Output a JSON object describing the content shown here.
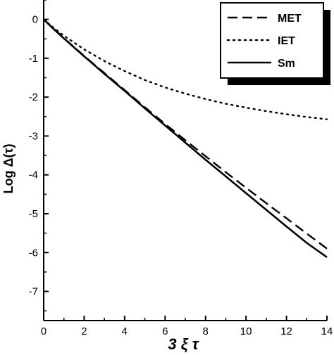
{
  "chart_data": {
    "type": "line",
    "title": "",
    "xlabel": "3 ξ τ",
    "ylabel": "Log Δ(τ)",
    "xlim": [
      0,
      14
    ],
    "ylim": [
      -7.75,
      0.5
    ],
    "xticks": [
      0,
      2,
      4,
      6,
      8,
      10,
      12,
      14
    ],
    "xtick_labels": [
      "0",
      "2",
      "4",
      "6",
      "8",
      "10",
      "12",
      "14"
    ],
    "yticks": [
      0,
      -1,
      -2,
      -3,
      -4,
      -5,
      -6,
      -7
    ],
    "ytick_labels": [
      "0",
      "-1",
      "-2",
      "-3",
      "-4",
      "-5",
      "-6",
      "-7"
    ],
    "grid": false,
    "legend_position": "top-right",
    "series": [
      {
        "name": "MET",
        "style": "dashed",
        "color": "#000000",
        "x": [
          0,
          0.5,
          1,
          2,
          3,
          4,
          5,
          6,
          7,
          8,
          9,
          10,
          11,
          12,
          13,
          14
        ],
        "y": [
          0,
          -0.24,
          -0.48,
          -0.94,
          -1.38,
          -1.82,
          -2.26,
          -2.69,
          -3.11,
          -3.52,
          -3.93,
          -4.33,
          -4.73,
          -5.12,
          -5.51,
          -5.9
        ]
      },
      {
        "name": "IET",
        "style": "dotted",
        "color": "#000000",
        "x": [
          0,
          0.5,
          1,
          2,
          3,
          4,
          5,
          6,
          7,
          8,
          9,
          10,
          11,
          12,
          13,
          14
        ],
        "y": [
          0,
          -0.22,
          -0.42,
          -0.77,
          -1.07,
          -1.33,
          -1.56,
          -1.75,
          -1.91,
          -2.05,
          -2.17,
          -2.27,
          -2.36,
          -2.44,
          -2.51,
          -2.57
        ]
      },
      {
        "name": "Sm",
        "style": "solid",
        "color": "#000000",
        "x": [
          0,
          0.5,
          1,
          2,
          3,
          4,
          5,
          6,
          7,
          8,
          9,
          10,
          11,
          12,
          13,
          14
        ],
        "y": [
          0,
          -0.25,
          -0.49,
          -0.95,
          -1.4,
          -1.84,
          -2.29,
          -2.73,
          -3.17,
          -3.61,
          -4.04,
          -4.47,
          -4.9,
          -5.33,
          -5.75,
          -6.12
        ]
      }
    ]
  }
}
